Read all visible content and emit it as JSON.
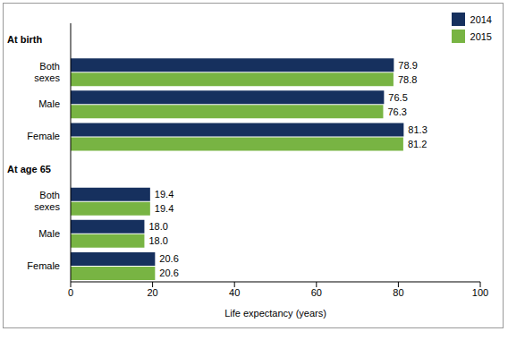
{
  "chart_data": {
    "type": "bar",
    "orientation": "horizontal",
    "x_label": "Life expectancy (years)",
    "categories": [
      "At birth",
      "Both sexes",
      "Male",
      "Female",
      "At age 65",
      "Both sexes",
      "Male",
      "Female"
    ],
    "series": [
      {
        "name": "2014",
        "color": "#16305e",
        "values": [
          null,
          78.9,
          76.5,
          81.3,
          null,
          19.4,
          18.0,
          20.6
        ],
        "value_labels": [
          null,
          "78.9",
          "76.5",
          "81.3",
          null,
          "19.4",
          "18.0",
          "20.6"
        ]
      },
      {
        "name": "2015",
        "color": "#78b443",
        "values": [
          null,
          78.8,
          76.3,
          81.2,
          null,
          19.4,
          18.0,
          20.6
        ],
        "value_labels": [
          null,
          "78.8",
          "76.3",
          "81.2",
          null,
          "19.4",
          "18.0",
          "20.6"
        ]
      }
    ],
    "xlim": [
      0,
      100
    ],
    "xticks": [
      0,
      20,
      40,
      60,
      80,
      100
    ],
    "grid": false,
    "legend": "upper right",
    "data_labels": true,
    "stacked": false
  }
}
